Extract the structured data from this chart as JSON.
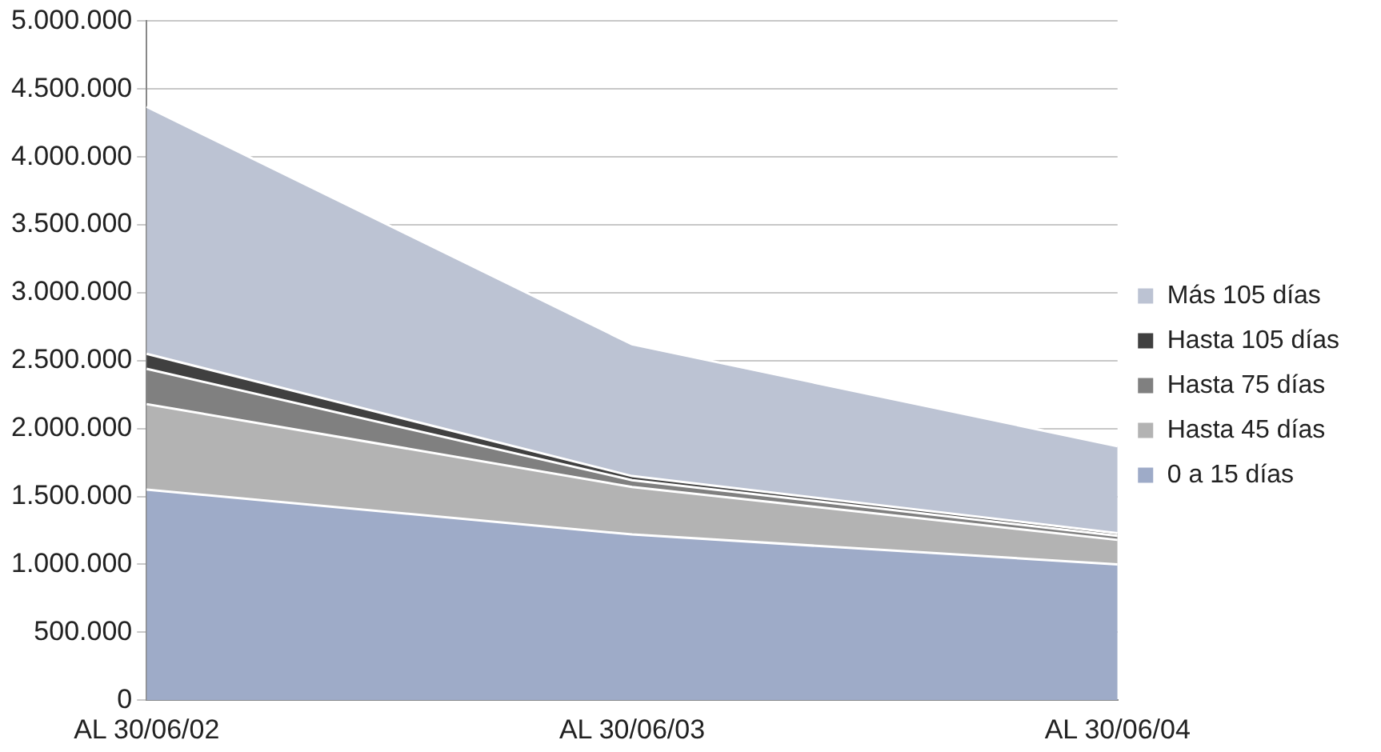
{
  "chart_data": {
    "type": "area",
    "stacked": true,
    "categories": [
      "AL 30/06/02",
      "AL 30/06/03",
      "AL 30/06/04"
    ],
    "series": [
      {
        "name": "0 a 15 días",
        "color": "#9eabc8",
        "values": [
          1550000,
          1220000,
          1000000
        ]
      },
      {
        "name": "Hasta 45 días",
        "color": "#b3b3b3",
        "values": [
          630000,
          350000,
          180000
        ]
      },
      {
        "name": "Hasta 75 días",
        "color": "#808080",
        "values": [
          260000,
          50000,
          30000
        ]
      },
      {
        "name": "Hasta 105 días",
        "color": "#404040",
        "values": [
          110000,
          30000,
          20000
        ]
      },
      {
        "name": "Más 105 días",
        "color": "#bcc3d3",
        "values": [
          1820000,
          970000,
          640000
        ]
      }
    ],
    "ylim": [
      0,
      5000000
    ],
    "yticks": [
      {
        "value": 0,
        "label": "0"
      },
      {
        "value": 500000,
        "label": "500.000"
      },
      {
        "value": 1000000,
        "label": "1.000.000"
      },
      {
        "value": 1500000,
        "label": "1.500.000"
      },
      {
        "value": 2000000,
        "label": "2.000.000"
      },
      {
        "value": 2500000,
        "label": "2.500.000"
      },
      {
        "value": 3000000,
        "label": "3.000.000"
      },
      {
        "value": 3500000,
        "label": "3.500.000"
      },
      {
        "value": 4000000,
        "label": "4.000.000"
      },
      {
        "value": 4500000,
        "label": "4.500.000"
      },
      {
        "value": 5000000,
        "label": "5.000.000"
      }
    ],
    "grid": "y",
    "legend": "right"
  }
}
